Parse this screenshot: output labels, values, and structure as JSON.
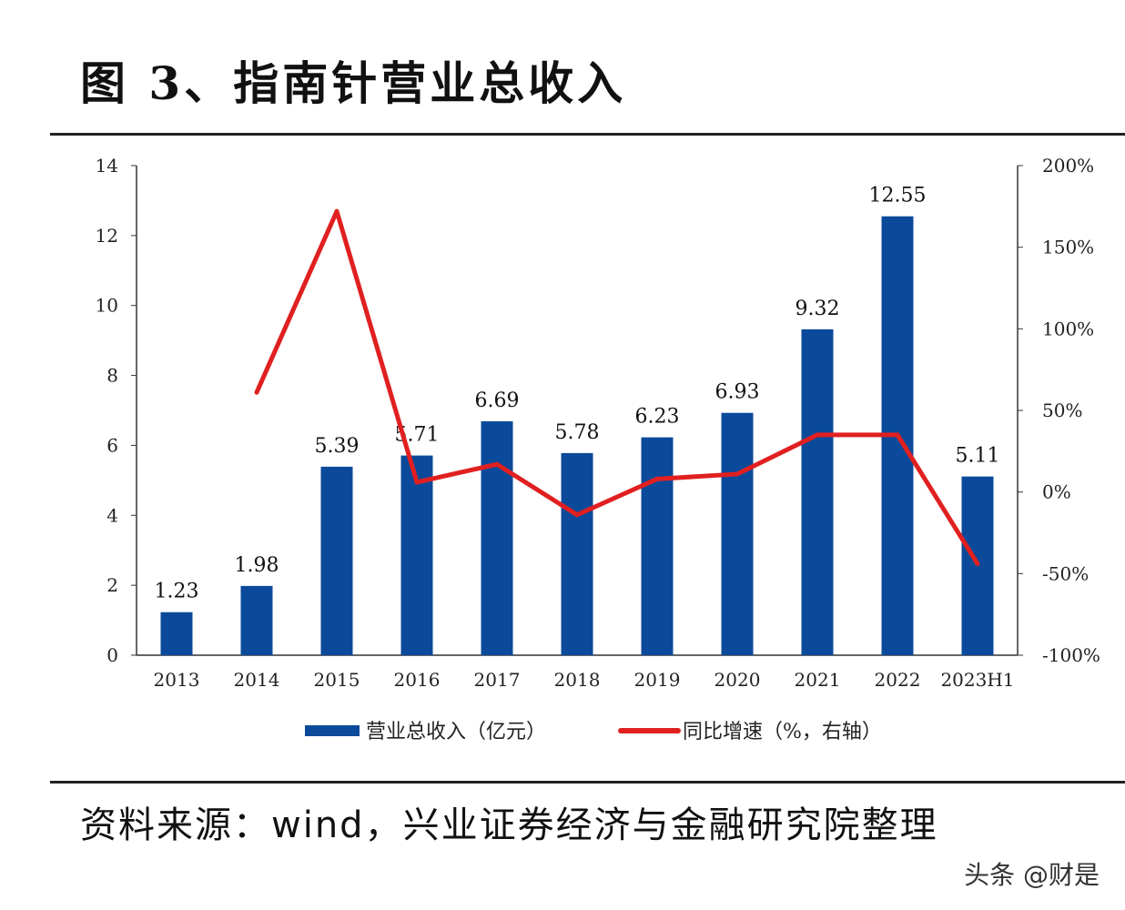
{
  "title": "图 3、指南针营业总收入",
  "source": "资料来源：wind，兴业证券经济与金融研究院整理",
  "watermark": "头条 @财是",
  "chart_data": {
    "type": "bar+line",
    "categories": [
      "2013",
      "2014",
      "2015",
      "2016",
      "2017",
      "2018",
      "2019",
      "2020",
      "2021",
      "2022",
      "2023H1"
    ],
    "series": [
      {
        "name": "营业总收入（亿元）",
        "type": "bar",
        "axis": "left",
        "color": "#0b4a9a",
        "values": [
          1.23,
          1.98,
          5.39,
          5.71,
          6.69,
          5.78,
          6.23,
          6.93,
          9.32,
          12.55,
          5.11
        ],
        "labels": [
          "1.23",
          "1.98",
          "5.39",
          "5.71",
          "6.69",
          "5.78",
          "6.23",
          "6.93",
          "9.32",
          "12.55",
          "5.11"
        ]
      },
      {
        "name": "同比增速（%，右轴）",
        "type": "line",
        "axis": "right",
        "color": "#e02020",
        "values": [
          null,
          61,
          172,
          6,
          17,
          -14,
          8,
          11,
          35,
          35,
          -44
        ]
      }
    ],
    "left_axis": {
      "ylim": [
        0,
        14
      ],
      "ticks": [
        "0",
        "2",
        "4",
        "6",
        "8",
        "10",
        "12",
        "14"
      ]
    },
    "right_axis": {
      "ylim": [
        -100,
        200
      ],
      "ticks": [
        "-100%",
        "-50%",
        "0%",
        "50%",
        "100%",
        "150%",
        "200%"
      ]
    },
    "legend": "bottom",
    "grid": false
  }
}
